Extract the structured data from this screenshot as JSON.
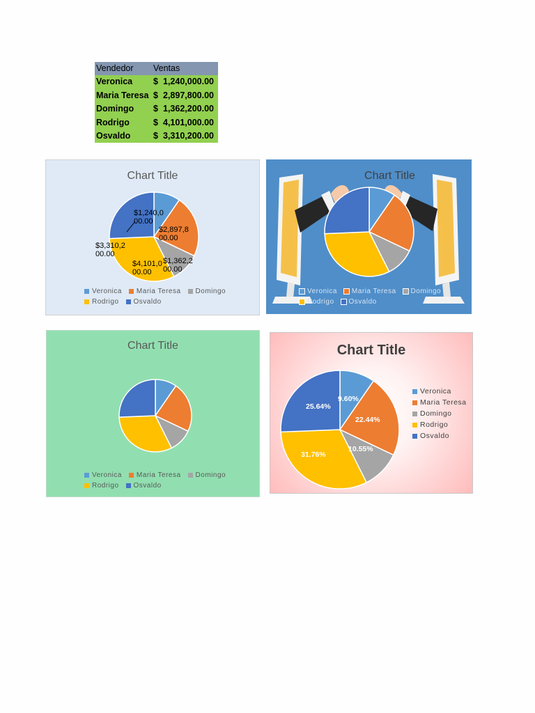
{
  "table": {
    "headers": [
      "Vendedor",
      "Ventas"
    ],
    "rows": [
      {
        "name": "Veronica",
        "currency": "$",
        "amount": "1,240,000.00"
      },
      {
        "name": "Maria Teresa",
        "currency": "$",
        "amount": "2,897,800.00"
      },
      {
        "name": "Domingo",
        "currency": "$",
        "amount": "1,362,200.00"
      },
      {
        "name": "Rodrigo",
        "currency": "$",
        "amount": "4,101,000.00"
      },
      {
        "name": "Osvaldo",
        "currency": "$",
        "amount": "3,310,200.00"
      }
    ]
  },
  "colors": {
    "Veronica": "#5b9bd5",
    "Maria Teresa": "#ed7d31",
    "Domingo": "#a5a5a5",
    "Rodrigo": "#ffc000",
    "Osvaldo": "#4472c4"
  },
  "chart_data": [
    {
      "type": "pie",
      "title": "Chart Title",
      "categories": [
        "Veronica",
        "Maria Teresa",
        "Domingo",
        "Rodrigo",
        "Osvaldo"
      ],
      "values": [
        1240000,
        2897800,
        1362200,
        4101000,
        3310200
      ],
      "data_labels": [
        "$1,240,0\n00.00",
        "$2,897,8\n00.00",
        "$1,362,2\n00.00",
        "$4,101,0\n00.00",
        "$3,310,2\n00.00"
      ],
      "legend": "bottom",
      "background": "light-blue"
    },
    {
      "type": "pie",
      "title": "Chart Title",
      "categories": [
        "Veronica",
        "Maria Teresa",
        "Domingo",
        "Rodrigo",
        "Osvaldo"
      ],
      "values": [
        1240000,
        2897800,
        1362200,
        4101000,
        3310200
      ],
      "legend": "bottom",
      "background": "picture"
    },
    {
      "type": "pie",
      "title": "Chart Title",
      "categories": [
        "Veronica",
        "Maria Teresa",
        "Domingo",
        "Rodrigo",
        "Osvaldo"
      ],
      "values": [
        1240000,
        2897800,
        1362200,
        4101000,
        3310200
      ],
      "legend": "bottom",
      "background": "green"
    },
    {
      "type": "pie",
      "title": "Chart Title",
      "categories": [
        "Veronica",
        "Maria Teresa",
        "Domingo",
        "Rodrigo",
        "Osvaldo"
      ],
      "values": [
        1240000,
        2897800,
        1362200,
        4101000,
        3310200
      ],
      "data_labels": [
        "9.60%",
        "22.44%",
        "10.55%",
        "31.76%",
        "25.64%"
      ],
      "legend": "right",
      "background": "pink-gradient"
    }
  ]
}
